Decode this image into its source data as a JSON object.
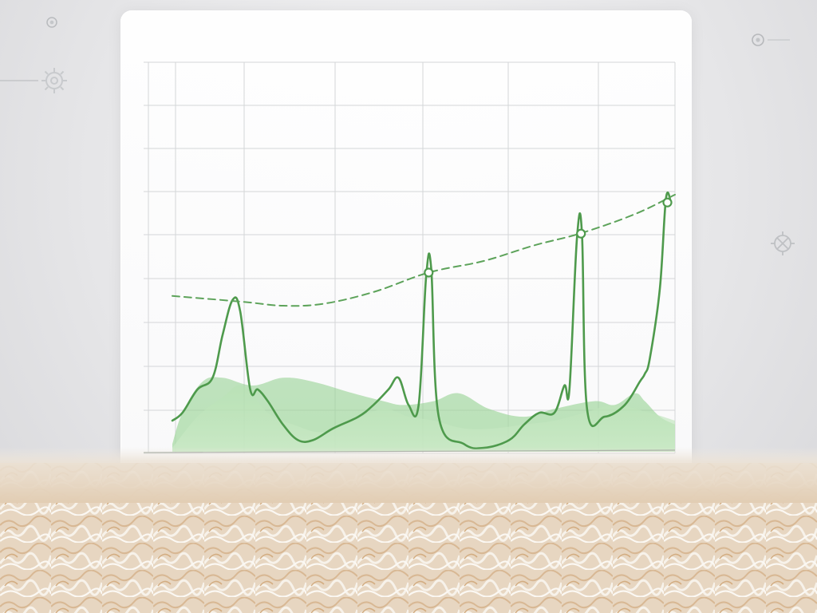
{
  "chart_data": {
    "type": "area",
    "xlim": [
      0,
      100
    ],
    "ylim": [
      0,
      10
    ],
    "grid": true,
    "legend": "none",
    "colors": {
      "line": "#4e9a4c",
      "fill": "#8fcf8c",
      "grid": "#d4d6d8",
      "dashed": "#5da35a"
    },
    "series": [
      {
        "style": "line",
        "points": [
          [
            0,
            0.8
          ],
          [
            2,
            1.0
          ],
          [
            5,
            1.6
          ],
          [
            8,
            1.9
          ],
          [
            10,
            3.0
          ],
          [
            12,
            3.9
          ],
          [
            13.5,
            3.6
          ],
          [
            15.5,
            1.6
          ],
          [
            17,
            1.6
          ],
          [
            19,
            1.3
          ],
          [
            22,
            0.7
          ],
          [
            25,
            0.3
          ],
          [
            28,
            0.3
          ],
          [
            32,
            0.6
          ],
          [
            37,
            0.9
          ],
          [
            40,
            1.2
          ],
          [
            43,
            1.6
          ],
          [
            45,
            1.9
          ],
          [
            47,
            1.2
          ],
          [
            49,
            1.2
          ],
          [
            50.5,
            4.5
          ],
          [
            51.5,
            4.7
          ],
          [
            53,
            0.9
          ],
          [
            58,
            0.2
          ],
          [
            62,
            0.1
          ],
          [
            67,
            0.3
          ],
          [
            70,
            0.7
          ],
          [
            73,
            1.0
          ],
          [
            76,
            1.0
          ],
          [
            78,
            1.7
          ],
          [
            79,
            1.6
          ],
          [
            80.5,
            5.5
          ],
          [
            81.5,
            5.6
          ],
          [
            82.5,
            1.1
          ],
          [
            86,
            0.9
          ],
          [
            90,
            1.2
          ],
          [
            93,
            1.8
          ],
          [
            94,
            2.0
          ],
          [
            95,
            2.4
          ],
          [
            97,
            4.2
          ],
          [
            98.2,
            6.5
          ],
          [
            99.2,
            6.4
          ]
        ]
      },
      {
        "style": "dashed",
        "points": [
          [
            0,
            4.0
          ],
          [
            14,
            3.85
          ],
          [
            22,
            3.75
          ],
          [
            30,
            3.8
          ],
          [
            40,
            4.1
          ],
          [
            51,
            4.6
          ],
          [
            62,
            4.9
          ],
          [
            72,
            5.3
          ],
          [
            81,
            5.6
          ],
          [
            92,
            6.1
          ],
          [
            100,
            6.6
          ]
        ],
        "markers": [
          [
            51,
            4.6
          ],
          [
            81.3,
            5.6
          ],
          [
            98.5,
            6.4
          ]
        ]
      },
      {
        "style": "area",
        "points": [
          [
            0,
            0.2
          ],
          [
            2,
            1.0
          ],
          [
            6,
            1.8
          ],
          [
            10,
            1.9
          ],
          [
            16,
            1.7
          ],
          [
            22,
            1.9
          ],
          [
            28,
            1.8
          ],
          [
            36,
            1.5
          ],
          [
            42,
            1.3
          ],
          [
            46,
            1.2
          ],
          [
            52,
            1.3
          ],
          [
            57,
            1.5
          ],
          [
            63,
            1.1
          ],
          [
            70,
            0.9
          ],
          [
            76,
            1.1
          ],
          [
            84,
            1.3
          ],
          [
            88,
            1.2
          ],
          [
            92,
            1.5
          ],
          [
            94,
            1.3
          ],
          [
            97,
            0.9
          ],
          [
            100,
            0.7
          ]
        ]
      },
      {
        "style": "area",
        "points": [
          [
            0,
            0.1
          ],
          [
            5,
            0.9
          ],
          [
            10,
            1.4
          ],
          [
            14,
            1.7
          ],
          [
            19,
            1.0
          ],
          [
            24,
            0.7
          ],
          [
            30,
            0.5
          ],
          [
            36,
            0.8
          ],
          [
            42,
            1.1
          ],
          [
            47,
            0.9
          ],
          [
            52,
            0.8
          ],
          [
            58,
            0.6
          ],
          [
            64,
            0.6
          ],
          [
            70,
            0.7
          ],
          [
            76,
            0.8
          ],
          [
            82,
            1.0
          ],
          [
            88,
            1.2
          ],
          [
            95,
            1.0
          ],
          [
            100,
            0.8
          ]
        ]
      }
    ]
  }
}
